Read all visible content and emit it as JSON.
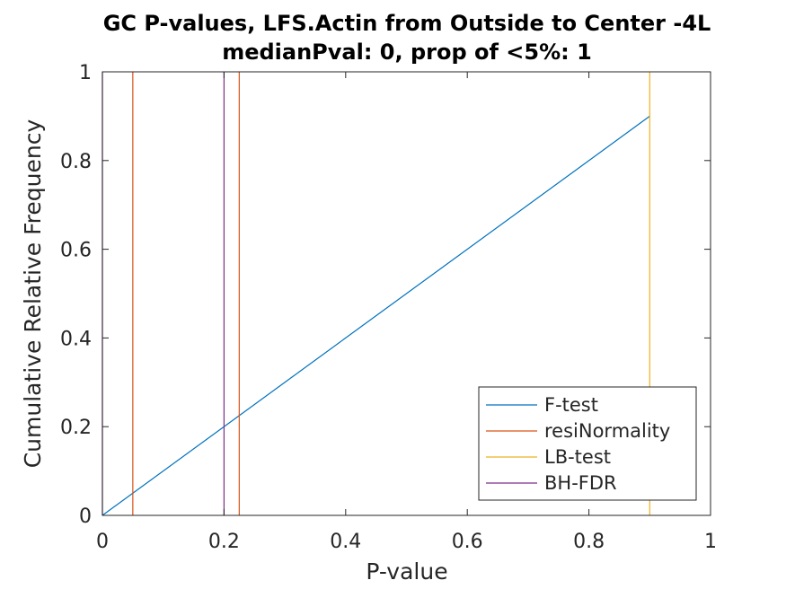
{
  "chart_data": {
    "type": "line",
    "title": [
      "GC P-values, LFS.Actin from Outside to Center -4L",
      "medianPval: 0, prop of <5%: 1"
    ],
    "xlabel": "P-value",
    "ylabel": "Cumulative Relative Frequency",
    "xlim": [
      0,
      1
    ],
    "ylim": [
      0,
      1
    ],
    "xticks": [
      0,
      0.2,
      0.4,
      0.6,
      0.8,
      1
    ],
    "yticks": [
      0,
      0.2,
      0.4,
      0.6,
      0.8,
      1
    ],
    "xtick_labels": [
      "0",
      "0.2",
      "0.4",
      "0.6",
      "0.8",
      "1"
    ],
    "ytick_labels": [
      "0",
      "0.2",
      "0.4",
      "0.6",
      "0.8",
      "1"
    ],
    "grid": false,
    "legend_position": "bottom-right",
    "series": [
      {
        "name": "F-test",
        "color": "#0072BD",
        "x": [
          0,
          0.9
        ],
        "y": [
          0,
          0.9
        ]
      },
      {
        "name": "resiNormality",
        "color": "#D95319",
        "x": [
          0.05,
          0.05,
          0.225,
          0.225
        ],
        "y": [
          0,
          1,
          0,
          1
        ],
        "style": "vertical-lines"
      },
      {
        "name": "LB-test",
        "color": "#EDB120",
        "x": [
          0.9,
          0.9
        ],
        "y": [
          0,
          1
        ],
        "style": "vertical-lines"
      },
      {
        "name": "BH-FDR",
        "color": "#7E2F8E",
        "x": [
          0,
          0,
          0.2,
          0.2
        ],
        "y": [
          0,
          1,
          0,
          1
        ],
        "style": "vertical-lines"
      }
    ]
  }
}
